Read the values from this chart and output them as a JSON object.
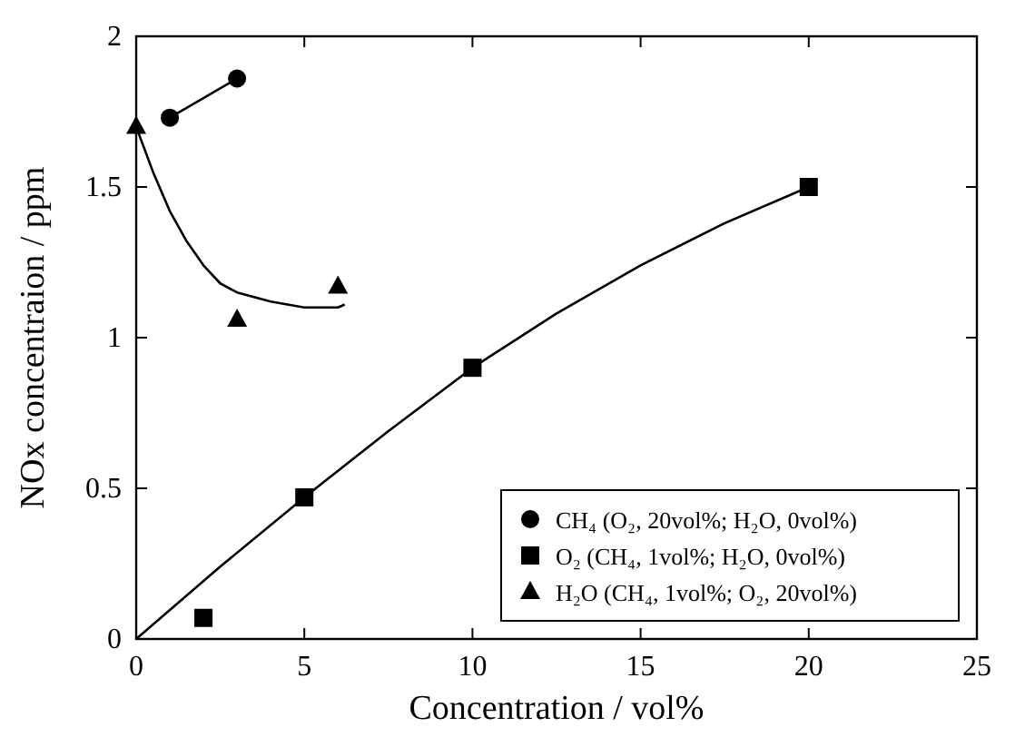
{
  "chart_data": {
    "type": "scatter",
    "xlabel": "Concentration / vol%",
    "ylabel": "NOx concentraion / ppm",
    "xlim": [
      0,
      25
    ],
    "ylim": [
      0,
      2
    ],
    "xticks": [
      0,
      5,
      10,
      15,
      20,
      25
    ],
    "yticks": [
      0,
      0.5,
      1,
      1.5,
      2
    ],
    "grid": false,
    "legend": "bottom right",
    "series": [
      {
        "name": "CH₄ (O₂, 20vol%; H₂O, 0vol%)",
        "type": "line",
        "marker": "circle",
        "color": "#000000",
        "x": [
          1,
          3
        ],
        "values": [
          1.73,
          1.86
        ]
      },
      {
        "name": "O₂ (CH₄, 1vol%; H₂O, 0vol%)",
        "marker": "square",
        "color": "#000000",
        "x": [
          2,
          5,
          10,
          20
        ],
        "values": [
          0.07,
          0.47,
          0.9,
          1.5
        ]
      },
      {
        "name": "H₂O (CH₄, 1vol%; O₂, 20vol%)",
        "marker": "triangle",
        "color": "#000000",
        "x": [
          0,
          3,
          6
        ],
        "values": [
          1.7,
          1.06,
          1.17
        ]
      },
      {
        "type": "line",
        "marker": "none",
        "color": "#000000",
        "x": [
          0,
          2.5,
          5,
          7.5,
          10,
          12.5,
          15,
          17.5,
          20
        ],
        "values": [
          0,
          0.24,
          0.47,
          0.69,
          0.9,
          1.08,
          1.24,
          1.38,
          1.5
        ]
      },
      {
        "type": "line",
        "marker": "none",
        "color": "#000000",
        "x": [
          0,
          0.5,
          1,
          1.5,
          2,
          2.5,
          3,
          4,
          5,
          6,
          6.2
        ],
        "values": [
          1.7,
          1.55,
          1.42,
          1.32,
          1.24,
          1.18,
          1.15,
          1.12,
          1.1,
          1.1,
          1.11
        ]
      }
    ]
  }
}
